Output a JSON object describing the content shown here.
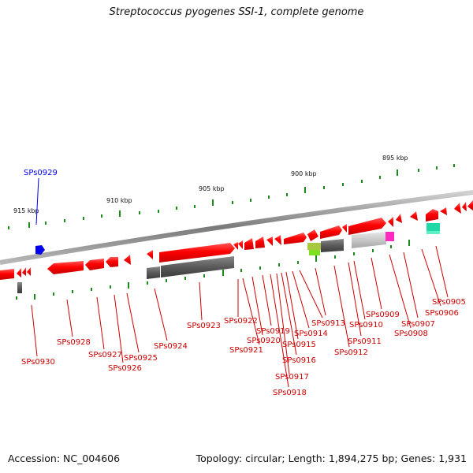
{
  "title": "Streptococcus pyogenes SSI-1, complete genome",
  "accession": "Accession: NC_004606",
  "summary": "Topology: circular; Length: 1,894,275 bp; Genes: 1,931",
  "scale_labels": [
    "915 kbp",
    "910 kbp",
    "905 kbp",
    "900 kbp",
    "895 kbp"
  ],
  "genes": [
    "SPs0929",
    "SPs0930",
    "SPs0928",
    "SPs0927",
    "SPs0926",
    "SPs0925",
    "SPs0924",
    "SPs0923",
    "SPs0922",
    "SPs0921",
    "SPs0920",
    "SPs0919",
    "SPs0918",
    "SPs0917",
    "SPs0916",
    "SPs0915",
    "SPs0914",
    "SPs0913",
    "SPs0912",
    "SPs0911",
    "SPs0910",
    "SPs0909",
    "SPs0908",
    "SPs0907",
    "SPs0906",
    "SPs0905"
  ],
  "colors": {
    "feature": "#ff0000",
    "label": "#cc0000",
    "highlight": "#0000ee",
    "backbone": "#8a8a8a",
    "tick": "#1a8a1a"
  }
}
